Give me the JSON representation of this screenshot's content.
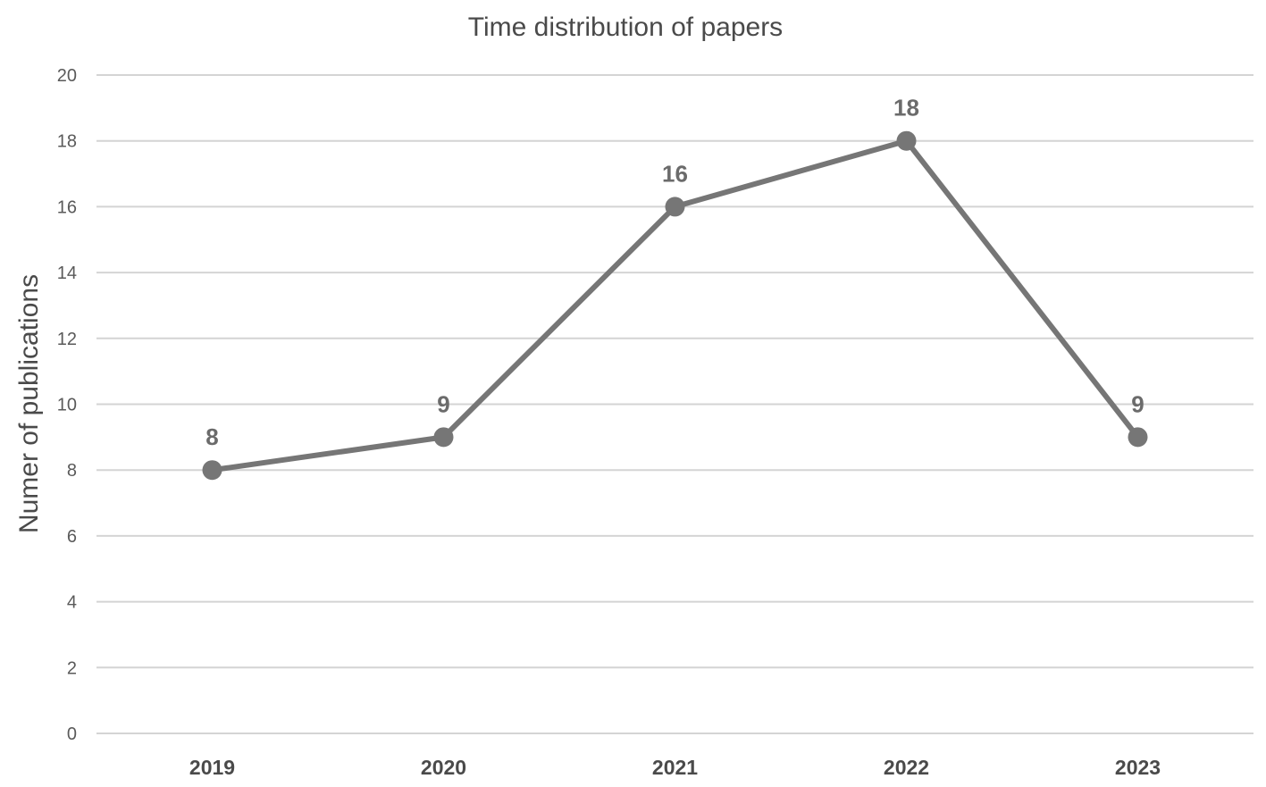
{
  "chart_data": {
    "type": "line",
    "title": "Time distribution of papers",
    "xlabel": "",
    "ylabel": "Numer of publications",
    "categories": [
      "2019",
      "2020",
      "2021",
      "2022",
      "2023"
    ],
    "values": [
      8,
      9,
      16,
      18,
      9
    ],
    "data_labels": [
      "8",
      "9",
      "16",
      "18",
      "9"
    ],
    "yticks": [
      0,
      2,
      4,
      6,
      8,
      10,
      12,
      14,
      16,
      18,
      20
    ],
    "ylim": [
      0,
      20
    ],
    "grid": true,
    "legend": "none",
    "series_color": "#767676",
    "grid_color": "#d4d4d4"
  }
}
